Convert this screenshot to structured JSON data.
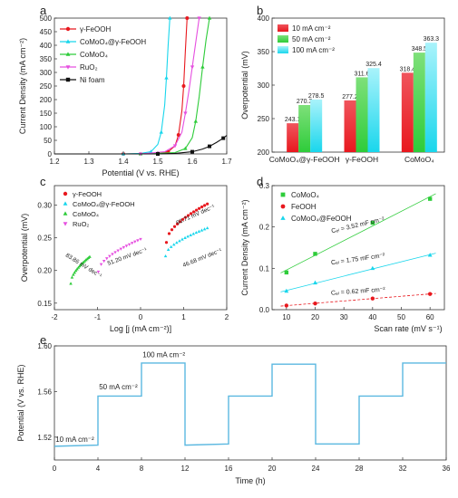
{
  "panel_labels": [
    "a",
    "b",
    "c",
    "d",
    "e"
  ],
  "colors": {
    "red": "#e8181e",
    "cyan": "#19d6ec",
    "green": "#2ecc3a",
    "magenta": "#e650e0",
    "black": "#111111",
    "e_line": "#5bb8e0",
    "b_red_top": "#f0545c",
    "b_green_top": "#7ee07a",
    "b_cyan_top": "#a9f3fb"
  },
  "chart_data": [
    {
      "panel": "a",
      "type": "line",
      "xlabel": "Potential (V vs. RHE)",
      "ylabel": "Current Density (mA cm⁻²)",
      "xlim": [
        1.2,
        1.7
      ],
      "ylim": [
        0,
        500
      ],
      "xticks": [
        "1.2",
        "1.3",
        "1.4",
        "1.5",
        "1.6",
        "1.7"
      ],
      "yticks": [
        "0",
        "50",
        "100",
        "150",
        "200",
        "250",
        "300",
        "350",
        "400",
        "450",
        "500"
      ],
      "legend_position": "top-left",
      "series": [
        {
          "name": "γ-FeOOH",
          "color": "#e8181e",
          "marker": "circle",
          "x": [
            1.2,
            1.4,
            1.5,
            1.53,
            1.55,
            1.56,
            1.57,
            1.575,
            1.58,
            1.585
          ],
          "y": [
            0,
            0,
            2,
            8,
            30,
            70,
            160,
            250,
            380,
            500
          ]
        },
        {
          "name": "CoMoO₄@γ-FeOOH",
          "color": "#19d6ec",
          "marker": "triangle",
          "x": [
            1.2,
            1.4,
            1.45,
            1.48,
            1.5,
            1.51,
            1.52,
            1.525,
            1.53,
            1.535
          ],
          "y": [
            0,
            0,
            2,
            8,
            35,
            80,
            180,
            280,
            400,
            500
          ]
        },
        {
          "name": "CoMoO₄",
          "color": "#2ecc3a",
          "marker": "triangle",
          "x": [
            1.2,
            1.45,
            1.55,
            1.58,
            1.6,
            1.61,
            1.62,
            1.63,
            1.64,
            1.65
          ],
          "y": [
            0,
            0,
            5,
            20,
            60,
            120,
            210,
            320,
            420,
            500
          ]
        },
        {
          "name": "RuO₂",
          "color": "#e650e0",
          "marker": "triangle-down",
          "x": [
            1.2,
            1.45,
            1.52,
            1.55,
            1.57,
            1.58,
            1.59,
            1.6,
            1.61,
            1.62
          ],
          "y": [
            0,
            0,
            8,
            30,
            80,
            150,
            230,
            320,
            410,
            500
          ]
        },
        {
          "name": "Ni foam",
          "color": "#111111",
          "marker": "square",
          "x": [
            1.2,
            1.5,
            1.55,
            1.6,
            1.63,
            1.65,
            1.67,
            1.69,
            1.7
          ],
          "y": [
            0,
            0,
            2,
            8,
            18,
            28,
            42,
            58,
            68
          ]
        }
      ]
    },
    {
      "panel": "b",
      "type": "bar",
      "ylabel": "Overpotential (mV)",
      "ylim": [
        200,
        400
      ],
      "yticks": [
        "200",
        "250",
        "300",
        "350",
        "400"
      ],
      "categories": [
        "CoMoO₄@γ-FeOOH",
        "γ-FeOOH",
        "CoMoO₄"
      ],
      "legend_position": "top-left",
      "series": [
        {
          "name": "10 mA cm⁻²",
          "color": "#e8181e",
          "values": [
            243.1,
            277.2,
            318.4
          ],
          "labels": [
            "243.1",
            "277.2",
            "318.4"
          ]
        },
        {
          "name": "50 mA cm⁻²",
          "color": "#2ecc3a",
          "values": [
            270.3,
            311.6,
            348.5
          ],
          "labels": [
            "270.3",
            "311.6",
            "348.5"
          ]
        },
        {
          "name": "100 mA cm⁻²",
          "color": "#19d6ec",
          "values": [
            278.5,
            325.4,
            363.3
          ],
          "labels": [
            "278.5",
            "325.4",
            "363.3"
          ]
        }
      ]
    },
    {
      "panel": "c",
      "type": "scatter",
      "xlabel": "Log [j (mA cm⁻²)]",
      "ylabel": "Overpotential (mV)",
      "xlim": [
        -2,
        2
      ],
      "ylim": [
        0.14,
        0.33
      ],
      "xticks": [
        "-2",
        "-1",
        "0",
        "1",
        "2"
      ],
      "yticks": [
        "0.15",
        "0.20",
        "0.25",
        "0.30"
      ],
      "legend_position": "top-left",
      "series": [
        {
          "name": "γ-FeOOH",
          "color": "#e8181e",
          "marker": "circle",
          "x_range": [
            0.6,
            1.55
          ],
          "y_range": [
            0.243,
            0.302
          ],
          "annotation": "60.71 mV dec⁻¹"
        },
        {
          "name": "CoMoO₄@γ-FeOOH",
          "color": "#19d6ec",
          "marker": "triangle",
          "x_range": [
            0.58,
            1.55
          ],
          "y_range": [
            0.222,
            0.265
          ],
          "annotation": "46.68 mV dec⁻¹"
        },
        {
          "name": "CoMoO₄",
          "color": "#2ecc3a",
          "marker": "triangle",
          "x_range": [
            -1.62,
            -1.18
          ],
          "y_range": [
            0.18,
            0.221
          ],
          "annotation": "83.86 mV dec⁻¹"
        },
        {
          "name": "RuO₂",
          "color": "#e650e0",
          "marker": "triangle-down",
          "x_range": [
            -0.98,
            0.0
          ],
          "y_range": [
            0.198,
            0.248
          ],
          "annotation": "51.20 mV dec⁻¹"
        }
      ]
    },
    {
      "panel": "d",
      "type": "scatter",
      "xlabel": "Scan rate (mV s⁻¹)",
      "ylabel": "Current Density (mA cm⁻²)",
      "xlim": [
        5,
        65
      ],
      "ylim": [
        0,
        0.3
      ],
      "xticks": [
        "10",
        "20",
        "30",
        "40",
        "50",
        "60"
      ],
      "yticks": [
        "0.0",
        "0.1",
        "0.2",
        "0.3"
      ],
      "legend_position": "top-left",
      "series": [
        {
          "name": "CoMoO₄",
          "color": "#2ecc3a",
          "marker": "square",
          "x": [
            10,
            20,
            40,
            60
          ],
          "y": [
            0.09,
            0.135,
            0.21,
            0.268
          ],
          "annotation": "Cₑₗ = 3.52 mF cm⁻²"
        },
        {
          "name": "FeOOH",
          "color": "#e8181e",
          "marker": "circle",
          "x": [
            10,
            20,
            40,
            60
          ],
          "y": [
            0.01,
            0.015,
            0.027,
            0.038
          ],
          "annotation": "Cₑₗ = 0.62 mF cm⁻²"
        },
        {
          "name": "CoMoO₄@FeOOH",
          "color": "#19d6ec",
          "marker": "triangle",
          "x": [
            10,
            20,
            40,
            60
          ],
          "y": [
            0.045,
            0.065,
            0.1,
            0.132
          ],
          "annotation": "Cₑₗ = 1.75 mF cm⁻²"
        }
      ]
    },
    {
      "panel": "e",
      "type": "line",
      "xlabel": "Time (h)",
      "ylabel": "Potential (V vs. RHE)",
      "xlim": [
        0,
        36
      ],
      "ylim": [
        1.5,
        1.6
      ],
      "xticks": [
        "0",
        "4",
        "8",
        "12",
        "16",
        "20",
        "24",
        "28",
        "32",
        "36"
      ],
      "yticks": [
        "1.52",
        "1.56",
        "1.60"
      ],
      "color": "#5bb8e0",
      "x": [
        0,
        4,
        4,
        8,
        8,
        12,
        12,
        16,
        16,
        20,
        20,
        24,
        24,
        28,
        28,
        32,
        32,
        36
      ],
      "y": [
        1.512,
        1.513,
        1.556,
        1.556,
        1.585,
        1.585,
        1.513,
        1.514,
        1.556,
        1.556,
        1.584,
        1.584,
        1.514,
        1.514,
        1.556,
        1.556,
        1.585,
        1.585
      ],
      "annotations": [
        {
          "text": "10 mA cm⁻²",
          "x": 0.1,
          "y": 1.516
        },
        {
          "text": "50 mA cm⁻²",
          "x": 4.1,
          "y": 1.562
        },
        {
          "text": "100 mA cm⁻²",
          "x": 8.1,
          "y": 1.59
        }
      ]
    }
  ]
}
